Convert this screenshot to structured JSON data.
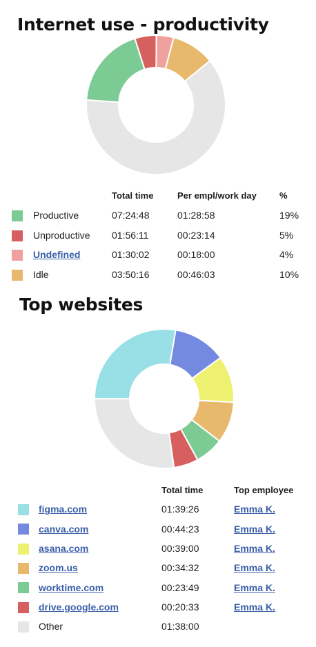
{
  "productivity": {
    "title": "Internet use - productivity",
    "columns": [
      "Total time",
      "Per empl/work day",
      "%"
    ],
    "rows": [
      {
        "label": "Productive",
        "total": "07:24:48",
        "per_day": "01:28:58",
        "pct": "19%",
        "color": "#7ccb94",
        "link": false
      },
      {
        "label": "Unproductive",
        "total": "01:56:11",
        "per_day": "00:23:14",
        "pct": "5%",
        "color": "#d5605f",
        "link": false
      },
      {
        "label": "Undefined",
        "total": "01:30:02",
        "per_day": "00:18:00",
        "pct": "4%",
        "color": "#f1a19d",
        "link": true
      },
      {
        "label": "Idle",
        "total": "03:50:16",
        "per_day": "00:46:03",
        "pct": "10%",
        "color": "#e8b96c",
        "link": false
      }
    ],
    "chart_data": {
      "type": "pie",
      "variant": "donut",
      "slices": [
        {
          "label": "Productive",
          "value": 19,
          "color": "#7ccb94"
        },
        {
          "label": "Unproductive",
          "value": 5,
          "color": "#d5605f"
        },
        {
          "label": "Undefined",
          "value": 4,
          "color": "#f1a19d"
        },
        {
          "label": "Idle",
          "value": 10,
          "color": "#e8b96c"
        },
        {
          "label": "Other",
          "value": 62,
          "color": "#e6e6e6"
        }
      ]
    }
  },
  "websites": {
    "title": "Top websites",
    "columns": [
      "Total time",
      "Top employee"
    ],
    "rows": [
      {
        "label": "figma.com",
        "total": "01:39:26",
        "employee": "Emma K.",
        "color": "#98e0e6",
        "link": true
      },
      {
        "label": "canva.com",
        "total": "00:44:23",
        "employee": "Emma K.",
        "color": "#7489e0",
        "link": true
      },
      {
        "label": "asana.com",
        "total": "00:39:00",
        "employee": "Emma K.",
        "color": "#eef070",
        "link": true
      },
      {
        "label": "zoom.us",
        "total": "00:34:32",
        "employee": "Emma K.",
        "color": "#e8b96c",
        "link": true
      },
      {
        "label": "worktime.com",
        "total": "00:23:49",
        "employee": "Emma K.",
        "color": "#7ccb94",
        "link": true
      },
      {
        "label": "drive.google.com",
        "total": "00:20:33",
        "employee": "Emma K.",
        "color": "#d5605f",
        "link": true
      },
      {
        "label": "Other",
        "total": "01:38:00",
        "employee": "",
        "color": "#e6e6e6",
        "link": false
      }
    ],
    "chart_data": {
      "type": "pie",
      "variant": "donut",
      "slices": [
        {
          "label": "figma.com",
          "value": 5966,
          "color": "#98e0e6"
        },
        {
          "label": "canva.com",
          "value": 2663,
          "color": "#7489e0"
        },
        {
          "label": "asana.com",
          "value": 2340,
          "color": "#eef070"
        },
        {
          "label": "zoom.us",
          "value": 2072,
          "color": "#e8b96c"
        },
        {
          "label": "worktime.com",
          "value": 1429,
          "color": "#7ccb94"
        },
        {
          "label": "drive.google.com",
          "value": 1233,
          "color": "#d5605f"
        },
        {
          "label": "Other",
          "value": 5880,
          "color": "#e6e6e6"
        }
      ]
    }
  }
}
